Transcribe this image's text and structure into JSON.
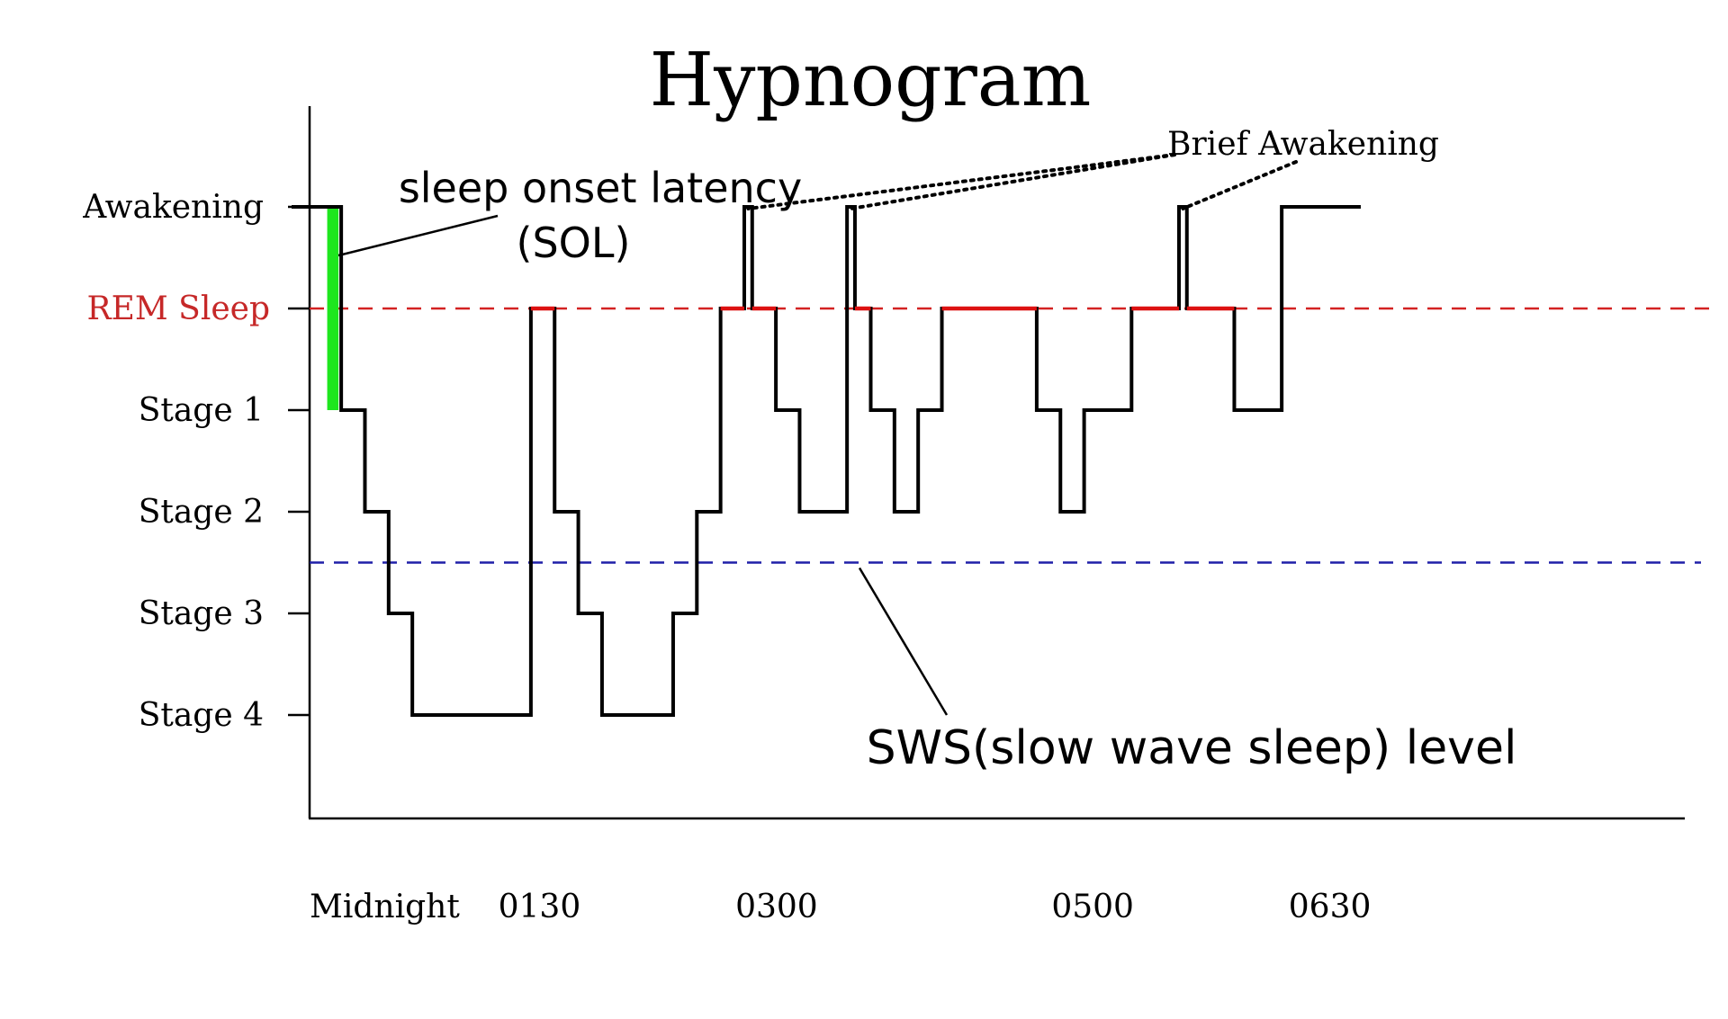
{
  "chart_data": {
    "type": "line",
    "title": "Hypnogram",
    "stages": [
      "Stage 4",
      "Stage 3",
      "Stage 2",
      "Stage 1",
      "REM Sleep",
      "Awakening"
    ],
    "x_tick_labels": [
      "Midnight",
      "0130",
      "0300",
      "0500",
      "0630"
    ],
    "x_tick_hours": [
      0,
      1.5,
      3,
      5,
      6.5
    ],
    "xlim": [
      0,
      8.7
    ],
    "hypnogram_steps": [
      {
        "t": 0.0,
        "stage": "Awakening"
      },
      {
        "t": 0.2,
        "stage": "Stage 1"
      },
      {
        "t": 0.35,
        "stage": "Stage 2"
      },
      {
        "t": 0.5,
        "stage": "Stage 3"
      },
      {
        "t": 0.65,
        "stage": "Stage 4"
      },
      {
        "t": 1.4,
        "stage": "REM Sleep"
      },
      {
        "t": 1.55,
        "stage": "Stage 2"
      },
      {
        "t": 1.7,
        "stage": "Stage 3"
      },
      {
        "t": 1.85,
        "stage": "Stage 4"
      },
      {
        "t": 2.3,
        "stage": "Stage 3"
      },
      {
        "t": 2.45,
        "stage": "Stage 2"
      },
      {
        "t": 2.6,
        "stage": "REM Sleep"
      },
      {
        "t": 2.75,
        "stage": "Awakening"
      },
      {
        "t": 2.8,
        "stage": "REM Sleep"
      },
      {
        "t": 2.95,
        "stage": "Stage 1"
      },
      {
        "t": 3.1,
        "stage": "Stage 2"
      },
      {
        "t": 3.4,
        "stage": "Awakening"
      },
      {
        "t": 3.45,
        "stage": "REM Sleep"
      },
      {
        "t": 3.55,
        "stage": "Stage 1"
      },
      {
        "t": 3.7,
        "stage": "Stage 2"
      },
      {
        "t": 3.85,
        "stage": "Stage 1"
      },
      {
        "t": 4.0,
        "stage": "REM Sleep"
      },
      {
        "t": 4.6,
        "stage": "Stage 1"
      },
      {
        "t": 4.75,
        "stage": "Stage 2"
      },
      {
        "t": 4.9,
        "stage": "Stage 1"
      },
      {
        "t": 5.2,
        "stage": "REM Sleep"
      },
      {
        "t": 5.5,
        "stage": "Awakening"
      },
      {
        "t": 5.55,
        "stage": "REM Sleep"
      },
      {
        "t": 5.85,
        "stage": "Stage 1"
      },
      {
        "t": 6.15,
        "stage": "Awakening"
      },
      {
        "t": 6.65,
        "stage": "Awakening"
      }
    ],
    "rem_segments": [
      [
        1.4,
        1.55
      ],
      [
        2.6,
        2.75
      ],
      [
        2.8,
        2.95
      ],
      [
        3.45,
        3.55
      ],
      [
        4.0,
        4.6
      ],
      [
        5.2,
        5.5
      ],
      [
        5.55,
        5.85
      ]
    ],
    "sol_interval": [
      0.1,
      0.2
    ],
    "reference_lines": [
      {
        "stage_level": 4.0,
        "label": "REM Sleep",
        "color": "#d32222",
        "style": "dashed"
      },
      {
        "stage_level": 1.5,
        "label": "SWS(slow wave sleep) level",
        "color": "#1f1fa8",
        "style": "dashed"
      }
    ],
    "annotations": {
      "sol_line1": "sleep onset latency",
      "sol_line2": "(SOL)",
      "brief_awakening": "Brief Awakening",
      "brief_awakening_points": [
        2.775,
        3.425,
        5.525
      ],
      "sws_level": "SWS(slow wave sleep) level"
    },
    "colors": {
      "line": "#000000",
      "rem": "#dd1111",
      "rem_label": "#c62828",
      "sws": "#1f1fa8",
      "sol_bar": "#1ee61e"
    },
    "grid": false
  }
}
